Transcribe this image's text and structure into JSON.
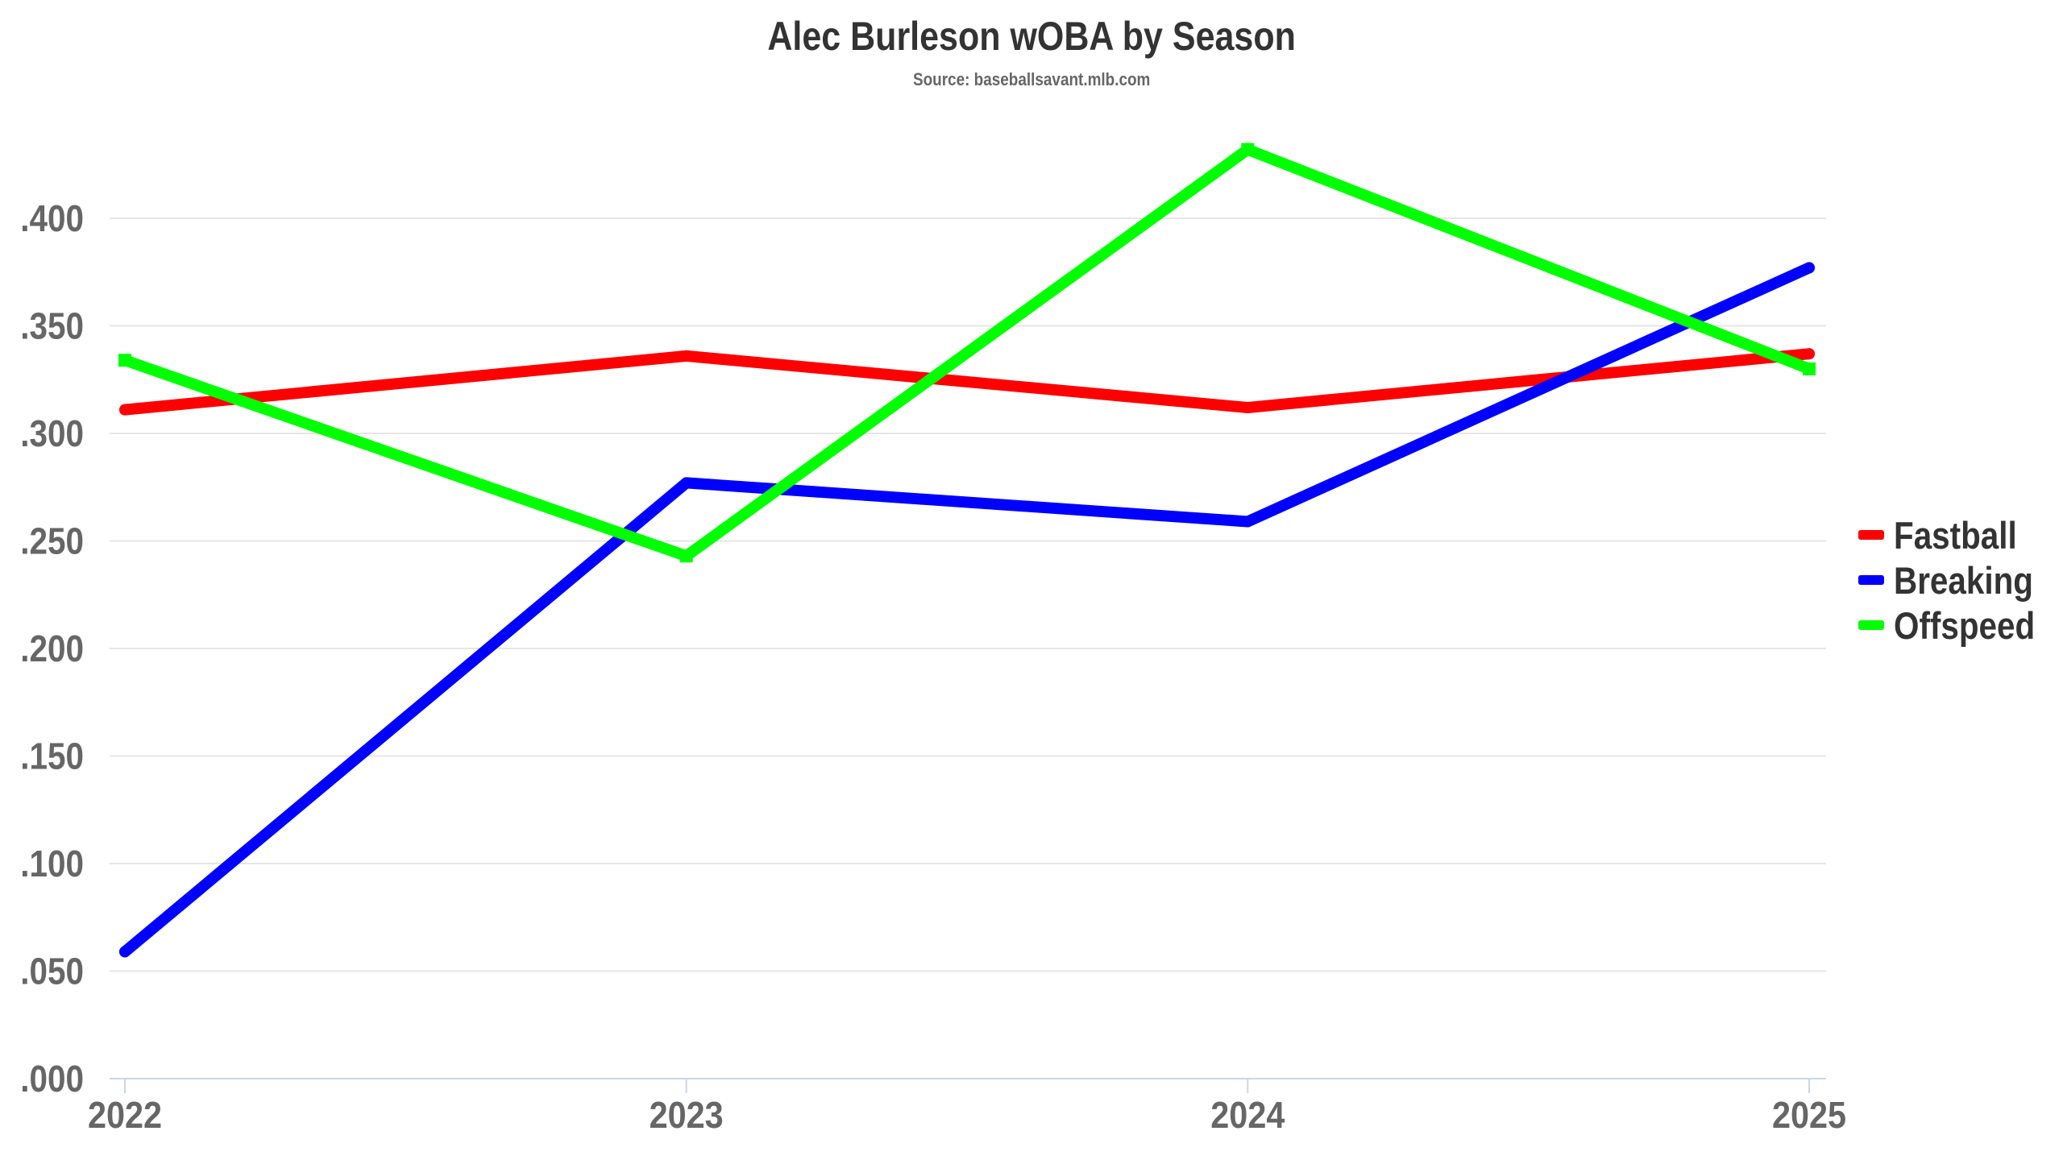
{
  "title": "Alec Burleson wOBA by Season",
  "subtitle": "Source: baseballsavant.mlb.com",
  "colors": {
    "fastball": "#ff0000",
    "breaking": "#0000ff",
    "offspeed": "#00ff00",
    "gridline": "#e6e6e6",
    "axis_line": "#ccd6e3",
    "tick_label": "#666666",
    "title": "#333333"
  },
  "legend": {
    "position": "right",
    "items": [
      {
        "label": "Fastball",
        "color": "#ff0000"
      },
      {
        "label": "Breaking",
        "color": "#0000ff"
      },
      {
        "label": "Offspeed",
        "color": "#00ff00"
      }
    ]
  },
  "chart_data": {
    "type": "line",
    "title": "Alec Burleson wOBA by Season",
    "subtitle": "Source: baseballsavant.mlb.com",
    "xlabel": "",
    "ylabel": "",
    "x": [
      "2022",
      "2023",
      "2024",
      "2025"
    ],
    "categories": [
      "2022",
      "2023",
      "2024",
      "2025"
    ],
    "series": [
      {
        "name": "Fastball",
        "color": "#ff0000",
        "marker": "circle",
        "values": [
          0.311,
          0.336,
          0.312,
          0.337
        ]
      },
      {
        "name": "Breaking",
        "color": "#0000ff",
        "marker": "circle",
        "values": [
          0.059,
          0.277,
          0.259,
          0.377
        ]
      },
      {
        "name": "Offspeed",
        "color": "#00ff00",
        "marker": "square",
        "values": [
          0.334,
          0.243,
          0.432,
          0.33
        ]
      }
    ],
    "ylim": [
      0,
      0.4
    ],
    "yticks": [
      ".000",
      ".050",
      ".100",
      ".150",
      ".200",
      ".250",
      ".300",
      ".350",
      ".400"
    ],
    "ytick_values": [
      0,
      0.05,
      0.1,
      0.15,
      0.2,
      0.25,
      0.3,
      0.35,
      0.4
    ],
    "xticks": [
      "2022",
      "2023",
      "2024",
      "2025"
    ],
    "grid": {
      "y": true,
      "x": false
    },
    "legend_position": "right"
  }
}
